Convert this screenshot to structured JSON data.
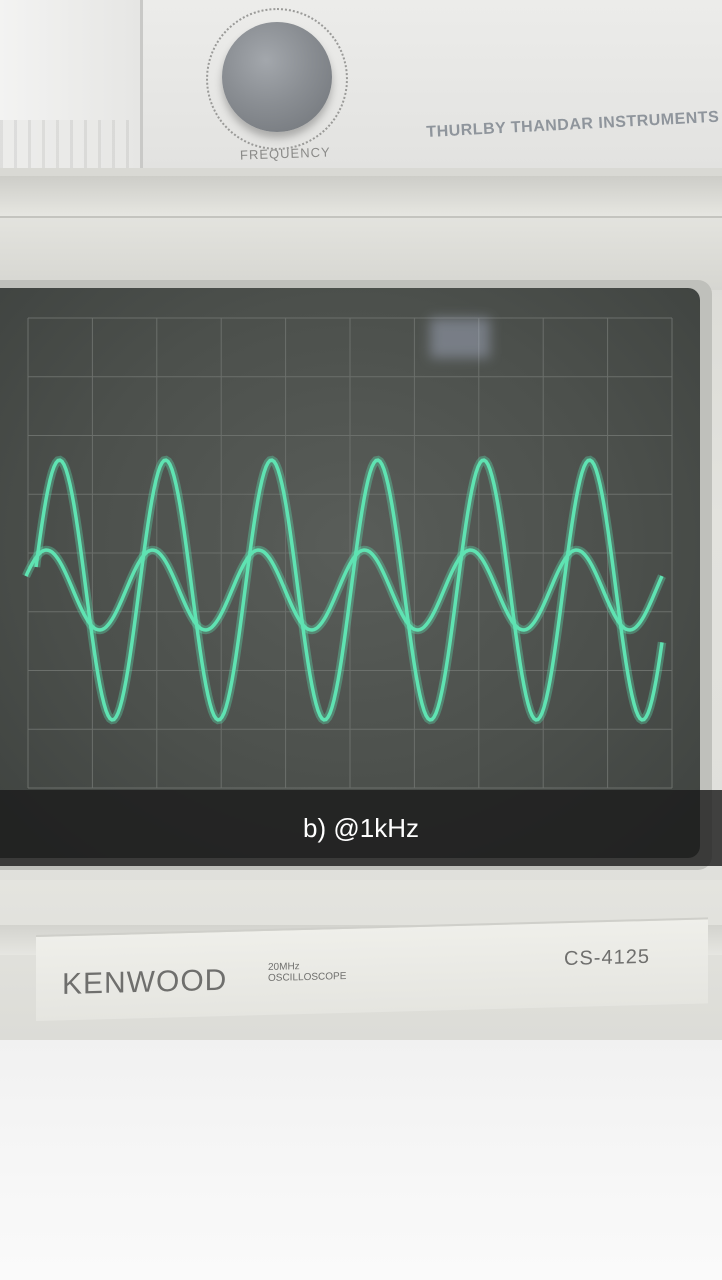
{
  "generator": {
    "knob_label": "FREQUENCY",
    "maker": "THURLBY THANDAR INSTRUMENTS"
  },
  "oscilloscope": {
    "brand": "KENWOOD",
    "spec_line1": "20MHz",
    "spec_line2": "OSCILLOSCOPE",
    "model": "CS-4125"
  },
  "caption": {
    "text": "b) @1kHz"
  },
  "traces": {
    "color": "#5fe3b2",
    "count": 2,
    "cycles_visible": 6
  }
}
